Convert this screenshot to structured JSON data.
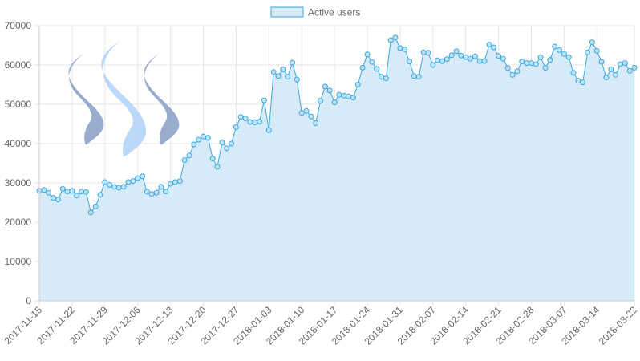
{
  "chart_data": {
    "type": "area",
    "legend": {
      "label": "Active users",
      "position": "top"
    },
    "colors": {
      "fill": "#d6eaf8",
      "line": "#3aa8dc",
      "point_fill": "#bfe3f6",
      "point_stroke": "#3aa8dc",
      "grid": "#e6e6e6"
    },
    "grid": true,
    "ylim": [
      0,
      70000
    ],
    "y_ticks": [
      0,
      10000,
      20000,
      30000,
      40000,
      50000,
      60000,
      70000
    ],
    "x_start": "2017-11-15",
    "x_end": "2018-03-22",
    "x_ticks": [
      "2017-11-15",
      "2017-11-22",
      "2017-11-29",
      "2017-12-06",
      "2017-12-13",
      "2017-12-20",
      "2017-12-27",
      "2018-01-03",
      "2018-01-10",
      "2018-01-17",
      "2018-01-24",
      "2018-01-31",
      "2018-02-07",
      "2018-02-14",
      "2018-02-21",
      "2018-02-28",
      "2018-03-07",
      "2018-03-14",
      "2018-03-22"
    ],
    "series": [
      {
        "name": "Active users",
        "values": [
          28000,
          28200,
          27500,
          26200,
          25800,
          28500,
          27800,
          28000,
          26800,
          27800,
          27700,
          22500,
          24000,
          27000,
          30200,
          29500,
          29000,
          28800,
          29000,
          30200,
          30500,
          31200,
          31700,
          27800,
          27200,
          27500,
          29000,
          27800,
          29800,
          30200,
          30500,
          35800,
          37000,
          39800,
          41000,
          41800,
          41500,
          36200,
          34100,
          40300,
          38800,
          40000,
          44200,
          46800,
          46400,
          45500,
          45400,
          45600,
          51000,
          43400,
          58200,
          57200,
          58900,
          57000,
          60600,
          56300,
          47800,
          48300,
          46900,
          45200,
          50900,
          54500,
          53500,
          50500,
          52400,
          52200,
          52000,
          51700,
          55000,
          59300,
          62700,
          60800,
          59000,
          57000,
          56600,
          66300,
          67000,
          64300,
          64000,
          60900,
          57200,
          57000,
          63200,
          63100,
          60000,
          61200,
          61000,
          61500,
          62500,
          63500,
          62400,
          62000,
          61600,
          62200,
          61000,
          61000,
          65200,
          64500,
          62300,
          61600,
          59200,
          57500,
          58400,
          60900,
          60500,
          60500,
          60200,
          62000,
          59300,
          61300,
          64700,
          63800,
          62800,
          62000,
          58000,
          56000,
          55600,
          63200,
          65800,
          63600,
          60800,
          56800,
          58900,
          57500,
          60200,
          60500,
          58500,
          59300
        ]
      }
    ]
  },
  "logo": {
    "name": "steem-logo"
  }
}
